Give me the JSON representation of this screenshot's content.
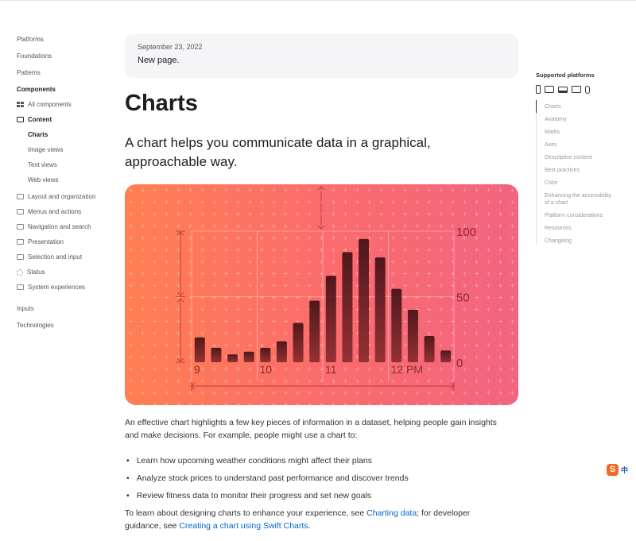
{
  "left_nav": {
    "items": [
      {
        "label": "Platforms"
      },
      {
        "label": "Foundations"
      },
      {
        "label": "Patterns"
      },
      {
        "label": "Components"
      },
      {
        "label": "All components",
        "icon": "grid-icon"
      },
      {
        "label": "Content",
        "icon": "content-icon"
      },
      {
        "label": "Charts"
      },
      {
        "label": "Image views"
      },
      {
        "label": "Text views"
      },
      {
        "label": "Web views"
      },
      {
        "label": "Layout and organization",
        "icon": "layout-icon"
      },
      {
        "label": "Menus and actions",
        "icon": "menu-icon"
      },
      {
        "label": "Navigation and search",
        "icon": "navigation-icon"
      },
      {
        "label": "Presentation",
        "icon": "presentation-icon"
      },
      {
        "label": "Selection and input",
        "icon": "selection-icon"
      },
      {
        "label": "Status",
        "icon": "status-icon"
      },
      {
        "label": "System experiences",
        "icon": "system-icon"
      },
      {
        "label": "Inputs"
      },
      {
        "label": "Technologies"
      }
    ]
  },
  "banner": {
    "date": "September 23, 2022",
    "note": "New page."
  },
  "title": "Charts",
  "lead": "A chart helps you communicate data in a graphical, approachable way.",
  "hero_chart": {
    "type": "bar",
    "x_labels": [
      "9",
      "10",
      "11",
      "12 PM"
    ],
    "y_labels": [
      "100",
      "50",
      "0"
    ],
    "ylim": [
      0,
      100
    ],
    "values": [
      19,
      11,
      6,
      8,
      11,
      16,
      30,
      47,
      66,
      84,
      94,
      80,
      56,
      40,
      20,
      9
    ],
    "colors": {
      "bg_start": "#ff7f52",
      "bg_end": "#f26480",
      "bar": "#6b1a1a"
    }
  },
  "body": {
    "p1": "An effective chart highlights a few key pieces of information in a dataset, helping people gain insights and make decisions. For example, people might use a chart to:",
    "bullets": [
      "Learn how upcoming weather conditions might affect their plans",
      "Analyze stock prices to understand past performance and discover trends",
      "Review fitness data to monitor their progress and set new goals"
    ],
    "p2_a": "To learn about designing charts to enhance your experience, see ",
    "link1": "Charting data",
    "p2_b": "; for developer guidance, see ",
    "link2": "Creating a chart using Swift Charts",
    "p2_c": "."
  },
  "right_nav": {
    "heading": "Supported platforms",
    "platforms": [
      "iphone-icon",
      "ipad-icon",
      "mac-icon",
      "tv-icon",
      "watch-icon"
    ],
    "toc": [
      "Charts",
      "Anatomy",
      "Marks",
      "Axes",
      "Descriptive content",
      "Best practices",
      "Color",
      "Enhancing the accessibility of a chart",
      "Platform considerations",
      "Resources",
      "Changelog"
    ]
  },
  "ime": {
    "label": "中",
    "icon": "sogou-ime-icon",
    "color": "#f06a25"
  }
}
